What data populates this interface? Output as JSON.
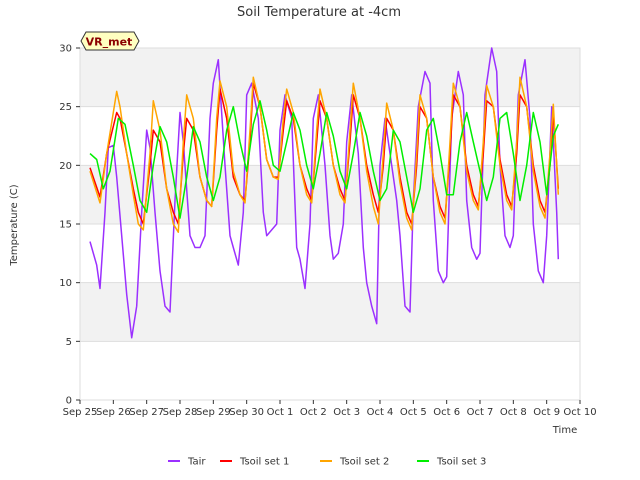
{
  "chart_data": {
    "type": "line",
    "title": "Soil Temperature at -4cm",
    "xlabel": "Time",
    "ylabel": "Temperature (C)",
    "badge": "VR_met",
    "x_ticks": [
      "Sep 25",
      "Sep 26",
      "Sep 27",
      "Sep 28",
      "Sep 29",
      "Sep 30",
      "Oct 1",
      "Oct 2",
      "Oct 3",
      "Oct 4",
      "Oct 5",
      "Oct 6",
      "Oct 7",
      "Oct 8",
      "Oct 9",
      "Oct 10"
    ],
    "xlim": [
      0,
      15
    ],
    "ylim": [
      0,
      30
    ],
    "y_ticks": [
      0,
      5,
      10,
      15,
      20,
      25,
      30
    ],
    "grid": true,
    "legend_position": "bottom",
    "x_unit": "days since Sep 25",
    "series": [
      {
        "name": "Tair",
        "color": "#9b30ff",
        "x": [
          0.3,
          0.5,
          0.6,
          0.75,
          0.85,
          1.0,
          1.1,
          1.25,
          1.4,
          1.55,
          1.7,
          1.85,
          2.0,
          2.1,
          2.25,
          2.4,
          2.55,
          2.7,
          2.85,
          3.0,
          3.1,
          3.3,
          3.45,
          3.6,
          3.75,
          3.9,
          4.0,
          4.15,
          4.35,
          4.5,
          4.6,
          4.75,
          4.9,
          5.0,
          5.15,
          5.35,
          5.5,
          5.6,
          5.75,
          5.9,
          6.0,
          6.15,
          6.35,
          6.5,
          6.6,
          6.75,
          6.9,
          7.0,
          7.15,
          7.35,
          7.5,
          7.6,
          7.75,
          7.9,
          8.0,
          8.15,
          8.35,
          8.5,
          8.6,
          8.75,
          8.9,
          9.0,
          9.15,
          9.35,
          9.5,
          9.6,
          9.75,
          9.9,
          10.0,
          10.15,
          10.35,
          10.5,
          10.6,
          10.75,
          10.9,
          11.0,
          11.15,
          11.35,
          11.5,
          11.6,
          11.75,
          11.9,
          12.0,
          12.15,
          12.35,
          12.5,
          12.6,
          12.75,
          12.9,
          13.0,
          13.15,
          13.35,
          13.5,
          13.6,
          13.75,
          13.9,
          14.0,
          14.15,
          14.3,
          14.35
        ],
        "y": [
          13.5,
          11.5,
          9.5,
          16,
          21.5,
          21.7,
          19,
          14,
          9,
          5.3,
          8,
          16,
          23,
          21.5,
          16,
          11,
          8,
          7.5,
          17,
          24.5,
          22,
          14,
          13,
          13,
          14,
          24,
          27,
          29,
          20,
          14,
          13,
          11.5,
          16,
          26,
          27,
          24,
          16,
          14,
          14.5,
          15,
          23,
          26,
          24,
          13,
          12,
          9.5,
          15,
          24,
          26,
          20,
          14,
          12,
          12.5,
          15,
          22,
          26,
          21,
          13,
          10,
          8,
          6.5,
          20,
          24,
          20,
          17,
          14,
          8,
          7.5,
          17,
          25,
          28,
          27,
          17,
          11,
          10,
          10.5,
          24,
          28,
          26,
          17,
          13,
          12,
          12.5,
          26,
          30,
          28,
          20,
          14,
          13,
          14,
          26,
          29,
          24,
          15,
          11,
          10,
          14,
          25,
          16,
          12
        ]
      },
      {
        "name": "Tsoil set 1",
        "color": "#ff0000",
        "x": [
          0.3,
          0.6,
          0.8,
          1.1,
          1.2,
          1.4,
          1.6,
          1.75,
          1.9,
          2.1,
          2.2,
          2.4,
          2.6,
          2.8,
          2.95,
          3.1,
          3.2,
          3.4,
          3.6,
          3.8,
          3.95,
          4.1,
          4.2,
          4.4,
          4.6,
          4.8,
          4.95,
          5.1,
          5.2,
          5.4,
          5.6,
          5.8,
          5.95,
          6.1,
          6.2,
          6.4,
          6.6,
          6.8,
          6.95,
          7.1,
          7.2,
          7.4,
          7.6,
          7.8,
          7.95,
          8.1,
          8.2,
          8.4,
          8.6,
          8.8,
          8.95,
          9.1,
          9.2,
          9.4,
          9.6,
          9.8,
          9.95,
          10.1,
          10.2,
          10.4,
          10.6,
          10.8,
          10.95,
          11.1,
          11.2,
          11.4,
          11.6,
          11.8,
          11.95,
          12.1,
          12.2,
          12.4,
          12.6,
          12.8,
          12.95,
          13.1,
          13.2,
          13.4,
          13.6,
          13.8,
          13.95,
          14.1,
          14.2,
          14.35
        ],
        "y": [
          19.8,
          17.3,
          21,
          24.5,
          24,
          21,
          18,
          16,
          15,
          20,
          23,
          22,
          18,
          16,
          15,
          21,
          24,
          23,
          19,
          17,
          16.5,
          23,
          26.5,
          24,
          19,
          17.5,
          17,
          22,
          27,
          25,
          20.5,
          19,
          19,
          23,
          25.5,
          24,
          20,
          18,
          17,
          22,
          25.5,
          24,
          20,
          18,
          17,
          22,
          26,
          24,
          20,
          17.5,
          16,
          20,
          24,
          23,
          19,
          16,
          15,
          20,
          25,
          24,
          19,
          16.5,
          15.5,
          21,
          26,
          25,
          20,
          17.5,
          16.5,
          21,
          25.5,
          25,
          20.5,
          17.5,
          16.5,
          21,
          26,
          25,
          20,
          17,
          16,
          20,
          24.5,
          18
        ]
      },
      {
        "name": "Tsoil set 2",
        "color": "#ffa500",
        "x": [
          0.3,
          0.6,
          0.8,
          1.1,
          1.2,
          1.4,
          1.6,
          1.75,
          1.9,
          2.1,
          2.2,
          2.4,
          2.6,
          2.8,
          2.95,
          3.1,
          3.2,
          3.4,
          3.6,
          3.8,
          3.95,
          4.1,
          4.2,
          4.4,
          4.6,
          4.8,
          4.95,
          5.1,
          5.2,
          5.4,
          5.6,
          5.8,
          5.95,
          6.1,
          6.2,
          6.4,
          6.6,
          6.8,
          6.95,
          7.1,
          7.2,
          7.4,
          7.6,
          7.8,
          7.95,
          8.1,
          8.2,
          8.4,
          8.6,
          8.8,
          8.95,
          9.1,
          9.2,
          9.4,
          9.6,
          9.8,
          9.95,
          10.1,
          10.2,
          10.4,
          10.6,
          10.8,
          10.95,
          11.1,
          11.2,
          11.4,
          11.6,
          11.8,
          11.95,
          12.1,
          12.2,
          12.4,
          12.6,
          12.8,
          12.95,
          13.1,
          13.2,
          13.4,
          13.6,
          13.8,
          13.95,
          14.1,
          14.2,
          14.35
        ],
        "y": [
          19.5,
          16.8,
          21,
          26.3,
          25,
          21,
          17.5,
          15,
          14.5,
          21,
          25.5,
          23,
          18,
          15,
          14.3,
          22,
          26,
          24,
          19,
          17,
          16.5,
          24,
          27.2,
          25,
          19.5,
          17.5,
          16.8,
          23,
          27.5,
          25,
          20.5,
          19,
          18.8,
          24,
          26.5,
          24.5,
          20,
          17.5,
          16.8,
          23,
          26.5,
          24,
          20,
          17.5,
          16.8,
          23,
          27,
          24,
          19.5,
          16.5,
          15,
          21,
          25.3,
          23,
          18.5,
          15.5,
          14.5,
          21,
          26,
          24,
          19,
          16,
          15,
          22,
          27,
          25,
          19.5,
          17,
          16.2,
          22,
          26.8,
          25,
          20,
          17,
          16.2,
          22,
          27.5,
          25,
          19.5,
          16.5,
          15.5,
          21,
          25.2,
          17.5
        ]
      },
      {
        "name": "Tsoil set 3",
        "color": "#00ee00",
        "x": [
          0.3,
          0.5,
          0.7,
          0.9,
          1.15,
          1.35,
          1.6,
          1.8,
          2.0,
          2.2,
          2.4,
          2.6,
          2.8,
          3.0,
          3.2,
          3.4,
          3.6,
          3.8,
          4.0,
          4.2,
          4.4,
          4.6,
          4.8,
          5.0,
          5.2,
          5.4,
          5.6,
          5.8,
          6.0,
          6.2,
          6.4,
          6.6,
          6.8,
          7.0,
          7.2,
          7.4,
          7.6,
          7.8,
          8.0,
          8.2,
          8.4,
          8.6,
          8.8,
          9.0,
          9.2,
          9.4,
          9.6,
          9.8,
          10.0,
          10.2,
          10.4,
          10.6,
          10.8,
          11.0,
          11.2,
          11.4,
          11.6,
          11.8,
          12.0,
          12.2,
          12.4,
          12.6,
          12.8,
          13.0,
          13.2,
          13.4,
          13.6,
          13.8,
          14.0,
          14.2,
          14.35
        ],
        "y": [
          21,
          20.5,
          18,
          19.5,
          24,
          23.5,
          20,
          17,
          16,
          20,
          23.3,
          22,
          19,
          15.5,
          19,
          23.3,
          22,
          19,
          17,
          19,
          23,
          25,
          22,
          19.5,
          23.5,
          25.5,
          23,
          20,
          19.5,
          22,
          24.5,
          23,
          20,
          18,
          21,
          24.5,
          22.5,
          19.5,
          18,
          21,
          24.5,
          22.5,
          19.5,
          17,
          18,
          23,
          22,
          19,
          16,
          18,
          23,
          24,
          21,
          17.5,
          17.5,
          22,
          24.5,
          22,
          19.5,
          17,
          19,
          24,
          24.5,
          21,
          17,
          20,
          24.5,
          22,
          17.5,
          22.5,
          23.5
        ]
      }
    ]
  }
}
